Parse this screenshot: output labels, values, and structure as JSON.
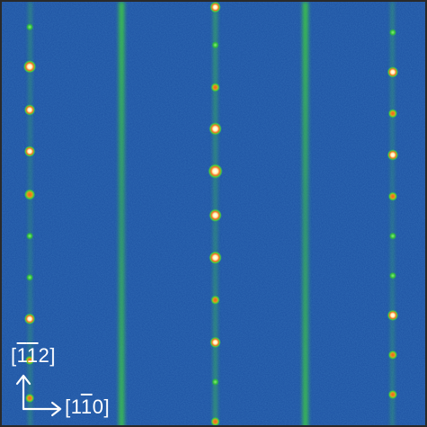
{
  "image": {
    "background_color": "#1b4fa0",
    "streak_color": "#3fd23a",
    "spot_core_color": "#fff6d8",
    "spot_warm_color": "#ff4a1a"
  },
  "axes": {
    "vertical_label": {
      "open": "[",
      "bar1": "1",
      "bar2": "1",
      "rest": "2]"
    },
    "horizontal_label": {
      "open": "[1",
      "bar": "1",
      "rest": "0]"
    },
    "arrow_color": "#ffffff"
  }
}
